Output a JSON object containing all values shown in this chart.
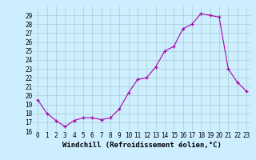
{
  "hours": [
    0,
    1,
    2,
    3,
    4,
    5,
    6,
    7,
    8,
    9,
    10,
    11,
    12,
    13,
    14,
    15,
    16,
    17,
    18,
    19,
    20,
    21,
    22,
    23
  ],
  "values": [
    19.5,
    18.0,
    17.2,
    16.5,
    17.2,
    17.5,
    17.5,
    17.3,
    17.5,
    18.5,
    20.3,
    21.8,
    22.0,
    23.2,
    25.0,
    25.5,
    27.5,
    28.0,
    29.2,
    29.0,
    28.8,
    23.0,
    21.5,
    20.5
  ],
  "xlim": [
    -0.5,
    23.5
  ],
  "ylim": [
    16,
    30
  ],
  "yticks": [
    16,
    17,
    18,
    19,
    20,
    21,
    22,
    23,
    24,
    25,
    26,
    27,
    28,
    29
  ],
  "xticks": [
    0,
    1,
    2,
    3,
    4,
    5,
    6,
    7,
    8,
    9,
    10,
    11,
    12,
    13,
    14,
    15,
    16,
    17,
    18,
    19,
    20,
    21,
    22,
    23
  ],
  "line_color": "#aa00aa",
  "marker": "+",
  "background_color": "#cceeff",
  "grid_color": "#aacccc",
  "xlabel": "Windchill (Refroidissement éolien,°C)",
  "xlabel_fontsize": 6.5,
  "tick_fontsize": 5.5
}
